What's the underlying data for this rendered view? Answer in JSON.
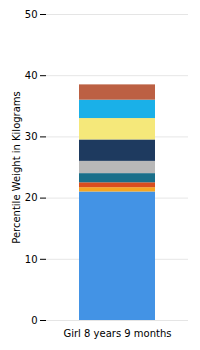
{
  "chart_data": {
    "type": "bar",
    "stacked": true,
    "categories": [
      "Girl 8 years 9 months"
    ],
    "series": [
      {
        "color": "#4393E5",
        "values": [
          21.0
        ]
      },
      {
        "color": "#F5A623",
        "values": [
          0.7
        ]
      },
      {
        "color": "#D94E1F",
        "values": [
          0.8
        ]
      },
      {
        "color": "#1A6F8A",
        "values": [
          1.5
        ]
      },
      {
        "color": "#B8B8B8",
        "values": [
          2.0
        ]
      },
      {
        "color": "#1E3A5F",
        "values": [
          3.5
        ]
      },
      {
        "color": "#F5E87A",
        "values": [
          3.5
        ]
      },
      {
        "color": "#1AB0E8",
        "values": [
          3.0
        ]
      },
      {
        "color": "#BC6043",
        "values": [
          2.5
        ]
      }
    ],
    "ylabel": "Percentile Weight in Kilograms",
    "ylim": [
      0,
      50
    ],
    "yticks": [
      0,
      10,
      20,
      30,
      40,
      50
    ],
    "grid": true
  }
}
